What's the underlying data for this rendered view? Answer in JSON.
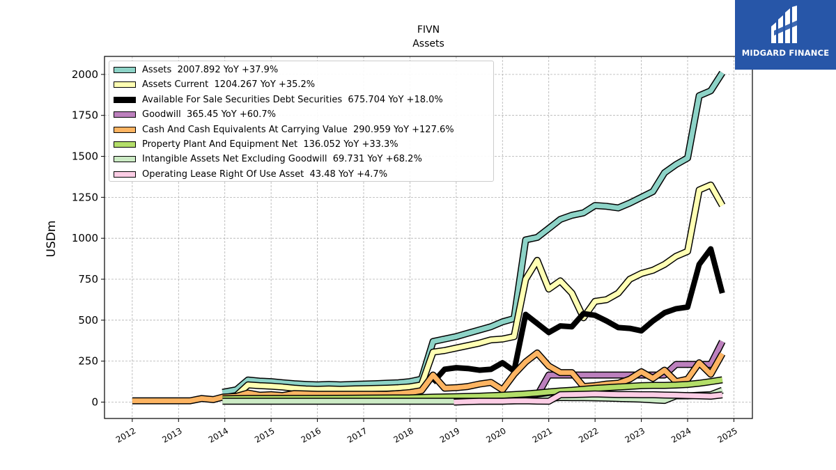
{
  "brand": {
    "name": "MIDGARD FINANCE",
    "color": "#2756a8"
  },
  "chart_data": {
    "type": "line",
    "title": "FIVN",
    "subtitle": "Assets",
    "ylabel": "USDm",
    "xlabel": "",
    "xlim": [
      2011.4,
      2025.4
    ],
    "ylim": [
      -100,
      2110
    ],
    "x_ticks": [
      "2012",
      "2013",
      "2014",
      "2015",
      "2016",
      "2017",
      "2018",
      "2019",
      "2020",
      "2021",
      "2022",
      "2023",
      "2024",
      "2025"
    ],
    "y_ticks": [
      "0",
      "250",
      "500",
      "750",
      "1000",
      "1250",
      "1500",
      "1750",
      "2000"
    ],
    "grid": true,
    "legend_position": "upper-left",
    "series": [
      {
        "name": "Assets",
        "legend": "Assets  2007.892 YoY +37.9%",
        "color": "#8dd3c7",
        "width": 7,
        "points": [
          [
            2013.95,
            60
          ],
          [
            2014.25,
            75
          ],
          [
            2014.5,
            135
          ],
          [
            2014.75,
            128
          ],
          [
            2015.0,
            125
          ],
          [
            2015.25,
            118
          ],
          [
            2015.5,
            112
          ],
          [
            2015.75,
            108
          ],
          [
            2016.0,
            105
          ],
          [
            2016.25,
            108
          ],
          [
            2016.5,
            105
          ],
          [
            2016.75,
            108
          ],
          [
            2017.0,
            110
          ],
          [
            2017.25,
            112
          ],
          [
            2017.5,
            115
          ],
          [
            2017.75,
            118
          ],
          [
            2018.0,
            125
          ],
          [
            2018.25,
            140
          ],
          [
            2018.5,
            370
          ],
          [
            2018.75,
            385
          ],
          [
            2019.0,
            400
          ],
          [
            2019.25,
            420
          ],
          [
            2019.5,
            440
          ],
          [
            2019.75,
            460
          ],
          [
            2020.0,
            490
          ],
          [
            2020.25,
            510
          ],
          [
            2020.5,
            990
          ],
          [
            2020.75,
            1005
          ],
          [
            2021.0,
            1060
          ],
          [
            2021.25,
            1115
          ],
          [
            2021.5,
            1140
          ],
          [
            2021.75,
            1155
          ],
          [
            2022.0,
            1200
          ],
          [
            2022.25,
            1195
          ],
          [
            2022.5,
            1185
          ],
          [
            2022.75,
            1215
          ],
          [
            2023.0,
            1250
          ],
          [
            2023.25,
            1285
          ],
          [
            2023.5,
            1400
          ],
          [
            2023.75,
            1450
          ],
          [
            2024.0,
            1490
          ],
          [
            2024.25,
            1870
          ],
          [
            2024.5,
            1900
          ],
          [
            2024.75,
            2010
          ]
        ]
      },
      {
        "name": "Assets Current",
        "legend": "Assets Current  1204.267 YoY +35.2%",
        "color": "#ffffb3",
        "width": 7,
        "points": [
          [
            2013.95,
            25
          ],
          [
            2014.25,
            40
          ],
          [
            2014.5,
            105
          ],
          [
            2014.75,
            100
          ],
          [
            2015.0,
            97
          ],
          [
            2015.25,
            92
          ],
          [
            2015.5,
            85
          ],
          [
            2015.75,
            80
          ],
          [
            2016.0,
            78
          ],
          [
            2016.25,
            80
          ],
          [
            2016.5,
            78
          ],
          [
            2016.75,
            80
          ],
          [
            2017.0,
            82
          ],
          [
            2017.25,
            83
          ],
          [
            2017.5,
            85
          ],
          [
            2017.75,
            88
          ],
          [
            2018.0,
            93
          ],
          [
            2018.25,
            105
          ],
          [
            2018.5,
            305
          ],
          [
            2018.75,
            315
          ],
          [
            2019.0,
            330
          ],
          [
            2019.25,
            345
          ],
          [
            2019.5,
            360
          ],
          [
            2019.75,
            380
          ],
          [
            2020.0,
            385
          ],
          [
            2020.25,
            400
          ],
          [
            2020.5,
            750
          ],
          [
            2020.75,
            865
          ],
          [
            2021.0,
            690
          ],
          [
            2021.25,
            740
          ],
          [
            2021.5,
            665
          ],
          [
            2021.75,
            515
          ],
          [
            2022.0,
            615
          ],
          [
            2022.25,
            625
          ],
          [
            2022.5,
            665
          ],
          [
            2022.75,
            750
          ],
          [
            2023.0,
            785
          ],
          [
            2023.25,
            805
          ],
          [
            2023.5,
            840
          ],
          [
            2023.75,
            890
          ],
          [
            2024.0,
            920
          ],
          [
            2024.25,
            1295
          ],
          [
            2024.5,
            1325
          ],
          [
            2024.75,
            1200
          ]
        ]
      },
      {
        "name": "Available For Sale Securities Debt Securities",
        "legend": "Available For Sale Securities Debt Securities  675.704 YoY +18.0%",
        "color": "#000000",
        "width": 8,
        "points": [
          [
            2018.5,
            120
          ],
          [
            2018.75,
            200
          ],
          [
            2019.0,
            210
          ],
          [
            2019.25,
            205
          ],
          [
            2019.5,
            195
          ],
          [
            2019.75,
            200
          ],
          [
            2020.0,
            240
          ],
          [
            2020.25,
            190
          ],
          [
            2020.5,
            535
          ],
          [
            2020.75,
            480
          ],
          [
            2021.0,
            425
          ],
          [
            2021.25,
            465
          ],
          [
            2021.5,
            460
          ],
          [
            2021.75,
            540
          ],
          [
            2022.0,
            530
          ],
          [
            2022.25,
            495
          ],
          [
            2022.5,
            455
          ],
          [
            2022.75,
            450
          ],
          [
            2023.0,
            435
          ],
          [
            2023.25,
            495
          ],
          [
            2023.5,
            545
          ],
          [
            2023.75,
            570
          ],
          [
            2024.0,
            580
          ],
          [
            2024.25,
            840
          ],
          [
            2024.5,
            935
          ],
          [
            2024.75,
            665
          ]
        ]
      },
      {
        "name": "Goodwill",
        "legend": "Goodwill  365.45 YoY +60.7%",
        "color": "#bc80bd",
        "width": 7,
        "points": [
          [
            2013.95,
            15
          ],
          [
            2014.25,
            15
          ],
          [
            2014.5,
            15
          ],
          [
            2015.0,
            15
          ],
          [
            2016.0,
            15
          ],
          [
            2017.0,
            15
          ],
          [
            2018.0,
            15
          ],
          [
            2018.5,
            15
          ],
          [
            2019.0,
            15
          ],
          [
            2019.5,
            15
          ],
          [
            2020.0,
            25
          ],
          [
            2020.25,
            40
          ],
          [
            2020.5,
            40
          ],
          [
            2020.75,
            40
          ],
          [
            2021.0,
            165
          ],
          [
            2021.25,
            165
          ],
          [
            2021.5,
            165
          ],
          [
            2021.75,
            165
          ],
          [
            2022.0,
            165
          ],
          [
            2022.5,
            165
          ],
          [
            2023.0,
            165
          ],
          [
            2023.25,
            165
          ],
          [
            2023.5,
            165
          ],
          [
            2023.75,
            230
          ],
          [
            2024.0,
            230
          ],
          [
            2024.25,
            230
          ],
          [
            2024.5,
            230
          ],
          [
            2024.75,
            370
          ]
        ]
      },
      {
        "name": "Cash And Cash Equivalents At Carrying Value",
        "legend": "Cash And Cash Equivalents At Carrying Value  290.959 YoY +127.6%",
        "color": "#fdb462",
        "width": 7,
        "points": [
          [
            2012.0,
            8
          ],
          [
            2012.5,
            8
          ],
          [
            2013.0,
            8
          ],
          [
            2013.25,
            8
          ],
          [
            2013.5,
            22
          ],
          [
            2013.75,
            15
          ],
          [
            2013.95,
            30
          ],
          [
            2014.25,
            35
          ],
          [
            2014.5,
            55
          ],
          [
            2014.75,
            42
          ],
          [
            2015.0,
            45
          ],
          [
            2015.25,
            40
          ],
          [
            2015.5,
            52
          ],
          [
            2015.75,
            50
          ],
          [
            2016.0,
            48
          ],
          [
            2016.25,
            48
          ],
          [
            2016.5,
            48
          ],
          [
            2016.75,
            48
          ],
          [
            2017.0,
            48
          ],
          [
            2017.25,
            48
          ],
          [
            2017.5,
            48
          ],
          [
            2017.75,
            52
          ],
          [
            2018.0,
            58
          ],
          [
            2018.25,
            70
          ],
          [
            2018.5,
            165
          ],
          [
            2018.75,
            85
          ],
          [
            2019.0,
            88
          ],
          [
            2019.25,
            95
          ],
          [
            2019.5,
            110
          ],
          [
            2019.75,
            120
          ],
          [
            2020.0,
            75
          ],
          [
            2020.25,
            170
          ],
          [
            2020.5,
            245
          ],
          [
            2020.75,
            300
          ],
          [
            2021.0,
            220
          ],
          [
            2021.25,
            180
          ],
          [
            2021.5,
            180
          ],
          [
            2021.75,
            95
          ],
          [
            2022.0,
            100
          ],
          [
            2022.25,
            110
          ],
          [
            2022.5,
            115
          ],
          [
            2022.75,
            140
          ],
          [
            2023.0,
            185
          ],
          [
            2023.25,
            145
          ],
          [
            2023.5,
            195
          ],
          [
            2023.75,
            125
          ],
          [
            2024.0,
            140
          ],
          [
            2024.25,
            240
          ],
          [
            2024.5,
            170
          ],
          [
            2024.75,
            295
          ]
        ]
      },
      {
        "name": "Property Plant And Equipment Net",
        "legend": "Property Plant And Equipment Net  136.052 YoY +33.3%",
        "color": "#b3de69",
        "width": 7,
        "points": [
          [
            2013.95,
            20
          ],
          [
            2014.5,
            22
          ],
          [
            2015.0,
            22
          ],
          [
            2016.0,
            23
          ],
          [
            2017.0,
            24
          ],
          [
            2018.0,
            26
          ],
          [
            2018.5,
            30
          ],
          [
            2019.0,
            33
          ],
          [
            2019.5,
            36
          ],
          [
            2020.0,
            42
          ],
          [
            2020.5,
            50
          ],
          [
            2020.75,
            55
          ],
          [
            2021.0,
            62
          ],
          [
            2021.25,
            68
          ],
          [
            2021.5,
            72
          ],
          [
            2021.75,
            78
          ],
          [
            2022.0,
            84
          ],
          [
            2022.25,
            88
          ],
          [
            2022.5,
            92
          ],
          [
            2022.75,
            96
          ],
          [
            2023.0,
            100
          ],
          [
            2023.25,
            102
          ],
          [
            2023.5,
            102
          ],
          [
            2023.75,
            104
          ],
          [
            2024.0,
            108
          ],
          [
            2024.25,
            115
          ],
          [
            2024.5,
            125
          ],
          [
            2024.75,
            136
          ]
        ]
      },
      {
        "name": "Intangible Assets Net Excluding Goodwill",
        "legend": "Intangible Assets Net Excluding Goodwill  69.731 YoY +68.2%",
        "color": "#ccebc5",
        "width": 7,
        "points": [
          [
            2013.95,
            5
          ],
          [
            2014.5,
            5
          ],
          [
            2015.0,
            5
          ],
          [
            2016.0,
            5
          ],
          [
            2017.0,
            5
          ],
          [
            2018.0,
            5
          ],
          [
            2019.0,
            5
          ],
          [
            2019.5,
            5
          ],
          [
            2020.0,
            5
          ],
          [
            2020.25,
            8
          ],
          [
            2020.5,
            10
          ],
          [
            2020.75,
            12
          ],
          [
            2021.0,
            22
          ],
          [
            2021.25,
            28
          ],
          [
            2021.5,
            27
          ],
          [
            2021.75,
            27
          ],
          [
            2022.0,
            26
          ],
          [
            2022.25,
            24
          ],
          [
            2022.5,
            22
          ],
          [
            2022.75,
            20
          ],
          [
            2023.0,
            18
          ],
          [
            2023.25,
            14
          ],
          [
            2023.5,
            10
          ],
          [
            2023.75,
            38
          ],
          [
            2024.0,
            38
          ],
          [
            2024.25,
            42
          ],
          [
            2024.5,
            45
          ],
          [
            2024.75,
            72
          ]
        ]
      },
      {
        "name": "Operating Lease Right Of Use Asset",
        "legend": "Operating Lease Right Of Use Asset  43.48 YoY +4.7%",
        "color": "#fccde5",
        "width": 7,
        "points": [
          [
            2018.95,
            0
          ],
          [
            2019.25,
            3
          ],
          [
            2019.5,
            5
          ],
          [
            2019.75,
            5
          ],
          [
            2020.0,
            5
          ],
          [
            2020.25,
            7
          ],
          [
            2020.5,
            8
          ],
          [
            2020.75,
            6
          ],
          [
            2021.0,
            5
          ],
          [
            2021.25,
            45
          ],
          [
            2021.5,
            46
          ],
          [
            2021.75,
            48
          ],
          [
            2022.0,
            50
          ],
          [
            2022.25,
            48
          ],
          [
            2022.5,
            46
          ],
          [
            2022.75,
            46
          ],
          [
            2023.0,
            45
          ],
          [
            2023.25,
            45
          ],
          [
            2023.5,
            43
          ],
          [
            2023.75,
            42
          ],
          [
            2024.0,
            40
          ],
          [
            2024.25,
            38
          ],
          [
            2024.5,
            36
          ],
          [
            2024.75,
            44
          ]
        ]
      }
    ]
  }
}
